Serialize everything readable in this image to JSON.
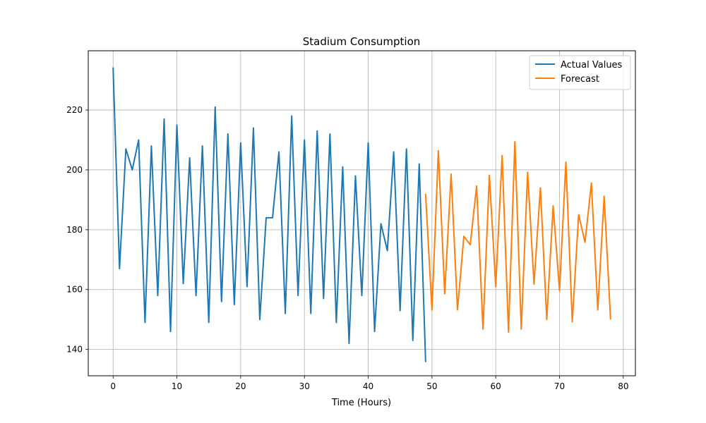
{
  "chart_data": {
    "type": "line",
    "title": "Stadium Consumption",
    "xlabel": "Time (Hours)",
    "ylabel": "",
    "xlim": [
      -3.9,
      81.9
    ],
    "ylim": [
      131.2,
      239.8
    ],
    "x_ticks": [
      0,
      10,
      20,
      30,
      40,
      50,
      60,
      70,
      80
    ],
    "y_ticks": [
      140,
      160,
      180,
      200,
      220
    ],
    "grid": true,
    "legend_position": "top-right",
    "series": [
      {
        "name": "Actual Values",
        "color": "#1f77b4",
        "x": [
          0,
          1,
          2,
          3,
          4,
          5,
          6,
          7,
          8,
          9,
          10,
          11,
          12,
          13,
          14,
          15,
          16,
          17,
          18,
          19,
          20,
          21,
          22,
          23,
          24,
          25,
          26,
          27,
          28,
          29,
          30,
          31,
          32,
          33,
          34,
          35,
          36,
          37,
          38,
          39,
          40,
          41,
          42,
          43,
          44,
          45,
          46,
          47,
          48,
          49
        ],
        "values": [
          234,
          167,
          207,
          200,
          210,
          149,
          208,
          158,
          217,
          146,
          215,
          162,
          204,
          158,
          208,
          149,
          221,
          156,
          212,
          155,
          209,
          161,
          214,
          150,
          184,
          184,
          206,
          152,
          218,
          158,
          210,
          152,
          213,
          157,
          212,
          149,
          201,
          142,
          198,
          158,
          209,
          146,
          182,
          173,
          206,
          153,
          207,
          143,
          202,
          136
        ]
      },
      {
        "name": "Forecast",
        "color": "#ff7f0e",
        "x": [
          49,
          50,
          51,
          52,
          53,
          54,
          55,
          56,
          57,
          58,
          59,
          60,
          61,
          62,
          63,
          64,
          65,
          66,
          67,
          68,
          69,
          70,
          71,
          72,
          73,
          74,
          75,
          76,
          77,
          78
        ],
        "values": [
          191.8,
          153.2,
          206.4,
          158.6,
          198.6,
          153.2,
          177.8,
          175.0,
          194.6,
          146.8,
          198.2,
          161.0,
          204.8,
          145.8,
          209.4,
          146.8,
          199.2,
          161.8,
          194.0,
          150.0,
          188.0,
          159.6,
          202.6,
          149.2,
          185.0,
          175.8,
          195.6,
          153.2,
          191.2,
          150.2
        ]
      }
    ]
  }
}
